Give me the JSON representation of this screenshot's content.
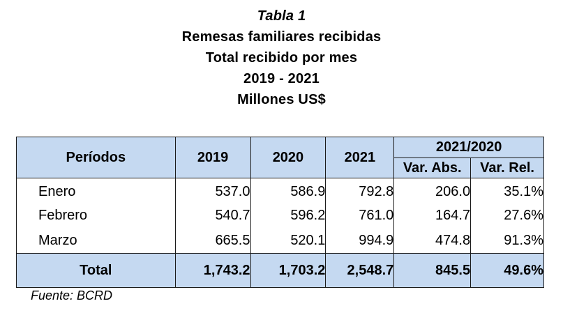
{
  "title": {
    "line1": "Tabla 1",
    "line2": "Remesas familiares recibidas",
    "line3": "Total recibido por mes",
    "line4": "2019 - 2021",
    "line5": "Millones US$"
  },
  "table": {
    "headers": {
      "period": "Períodos",
      "y2019": "2019",
      "y2020": "2020",
      "y2021": "2021",
      "group": "2021/2020",
      "var_abs": "Var. Abs.",
      "var_rel": "Var. Rel."
    },
    "rows": [
      {
        "period": "Enero",
        "y2019": "537.0",
        "y2020": "586.9",
        "y2021": "792.8",
        "var_abs": "206.0",
        "var_rel": "35.1%"
      },
      {
        "period": "Febrero",
        "y2019": "540.7",
        "y2020": "596.2",
        "y2021": "761.0",
        "var_abs": "164.7",
        "var_rel": "27.6%"
      },
      {
        "period": "Marzo",
        "y2019": "665.5",
        "y2020": "520.1",
        "y2021": "994.9",
        "var_abs": "474.8",
        "var_rel": "91.3%"
      }
    ],
    "total": {
      "period": "Total",
      "y2019": "1,743.2",
      "y2020": "1,703.2",
      "y2021": "2,548.7",
      "var_abs": "845.5",
      "var_rel": "49.6%"
    }
  },
  "source": "Fuente: BCRD",
  "colors": {
    "header_fill": "#c5d9f1",
    "border": "#1a1a1a"
  }
}
